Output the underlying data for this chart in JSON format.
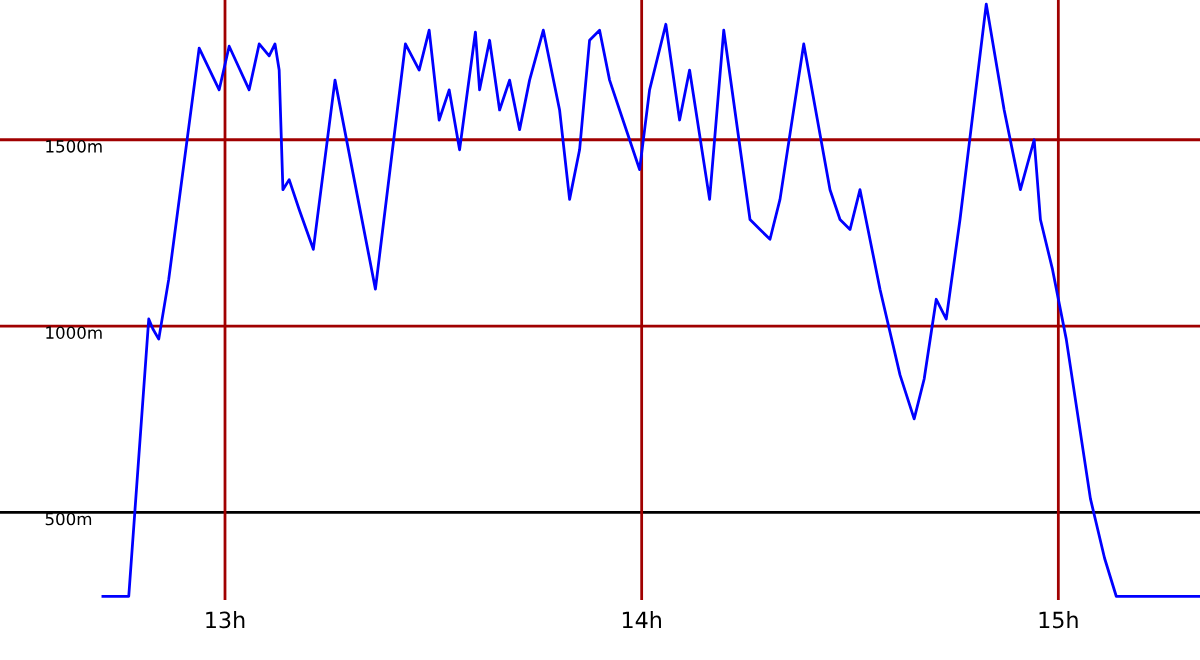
{
  "chart_data": {
    "type": "line",
    "color": "#0000ff",
    "x": [
      12.707,
      12.769,
      12.817,
      12.827,
      12.841,
      12.865,
      12.938,
      12.986,
      13.01,
      13.058,
      13.082,
      13.106,
      13.12,
      13.13,
      13.139,
      13.154,
      13.178,
      13.212,
      13.264,
      13.361,
      13.433,
      13.466,
      13.49,
      13.514,
      13.538,
      13.563,
      13.601,
      13.611,
      13.635,
      13.659,
      13.683,
      13.707,
      13.731,
      13.764,
      13.803,
      13.827,
      13.851,
      13.875,
      13.899,
      13.923,
      13.947,
      13.995,
      14.019,
      14.058,
      14.091,
      14.115,
      14.163,
      14.197,
      14.26,
      14.284,
      14.308,
      14.332,
      14.389,
      14.452,
      14.476,
      14.5,
      14.524,
      14.572,
      14.62,
      14.654,
      14.678,
      14.707,
      14.731,
      14.764,
      14.827,
      14.87,
      14.909,
      14.942,
      14.957,
      14.986,
      15.019,
      15.077,
      15.111,
      15.139,
      15.34
    ],
    "values": [
      275,
      275,
      1019,
      992,
      965,
      1126,
      1746,
      1634,
      1751,
      1634,
      1757,
      1725,
      1757,
      1687,
      1366,
      1393,
      1313,
      1206,
      1660,
      1099,
      1757,
      1687,
      1794,
      1553,
      1634,
      1473,
      1789,
      1634,
      1767,
      1580,
      1660,
      1527,
      1660,
      1794,
      1580,
      1340,
      1473,
      1767,
      1794,
      1660,
      1580,
      1420,
      1634,
      1810,
      1553,
      1687,
      1340,
      1794,
      1286,
      1259,
      1233,
      1340,
      1757,
      1366,
      1286,
      1259,
      1366,
      1099,
      869,
      751,
      858,
      1072,
      1019,
      1286,
      1864,
      1580,
      1366,
      1500,
      1286,
      1152,
      965,
      537,
      377,
      275,
      275
    ],
    "xlim": [
      12.46,
      15.34
    ],
    "ylim": [
      265,
      1875
    ],
    "xticks": [
      {
        "value": 13,
        "label": "13h"
      },
      {
        "value": 14,
        "label": "14h"
      },
      {
        "value": 15,
        "label": "15h"
      }
    ],
    "yticks": [
      {
        "value": 500,
        "label": "500m"
      },
      {
        "value": 1000,
        "label": "1000m"
      },
      {
        "value": 1500,
        "label": "1500m"
      }
    ],
    "ref_lines": [
      {
        "axis": "y",
        "value": 500,
        "color": "#000000"
      },
      {
        "axis": "y",
        "value": 1000,
        "color": "#a00000"
      },
      {
        "axis": "y",
        "value": 1500,
        "color": "#a00000"
      },
      {
        "axis": "x",
        "value": 13,
        "color": "#a00000"
      },
      {
        "axis": "x",
        "value": 14,
        "color": "#a00000"
      },
      {
        "axis": "x",
        "value": 15,
        "color": "#a00000"
      }
    ],
    "marker": "none",
    "line_style": "solid"
  }
}
